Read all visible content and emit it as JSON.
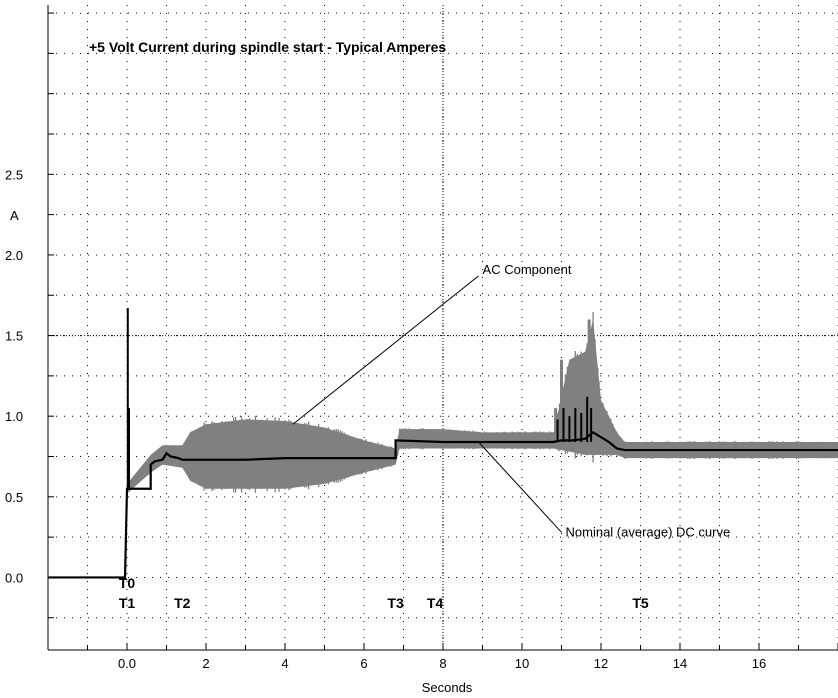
{
  "chart_data": {
    "type": "line",
    "title": "+5 Volt Current during spindle start - Typical Amperes",
    "xlabel": "Seconds",
    "ylabel": "A",
    "xlim": [
      -2.0,
      18.0
    ],
    "ylim": [
      -0.45,
      3.55
    ],
    "grid": true,
    "x_ticks": [
      {
        "value": 0,
        "label": "0.0"
      },
      {
        "value": 2,
        "label": "2"
      },
      {
        "value": 4,
        "label": "4"
      },
      {
        "value": 6,
        "label": "6"
      },
      {
        "value": 8,
        "label": "8"
      },
      {
        "value": 10,
        "label": "10"
      },
      {
        "value": 12,
        "label": "12"
      },
      {
        "value": 14,
        "label": "14"
      },
      {
        "value": 16,
        "label": "16"
      }
    ],
    "y_ticks": [
      {
        "value": 0.0,
        "label": "0.0"
      },
      {
        "value": 0.5,
        "label": "0.5"
      },
      {
        "value": 1.0,
        "label": "1.0"
      },
      {
        "value": 1.5,
        "label": "1.5"
      },
      {
        "value": 2.0,
        "label": "2.0"
      },
      {
        "value": 2.5,
        "label": "2.5"
      }
    ],
    "series": [
      {
        "name": "Nominal (average) DC curve",
        "color": "#000000",
        "x": [
          -2.0,
          -0.05,
          0.0,
          0.0,
          0.6,
          0.6,
          0.7,
          0.9,
          1.0,
          1.1,
          1.3,
          1.4,
          2.0,
          3.0,
          4.0,
          5.0,
          6.0,
          6.8,
          6.8,
          8.0,
          9.0,
          10.0,
          10.8,
          11.0,
          11.3,
          11.6,
          11.8,
          12.0,
          12.2,
          12.4,
          12.6,
          13.0,
          14.0,
          15.0,
          16.0,
          17.0,
          18.0
        ],
        "y": [
          0.0,
          0.0,
          0.55,
          0.55,
          0.55,
          0.7,
          0.72,
          0.73,
          0.77,
          0.75,
          0.74,
          0.73,
          0.73,
          0.73,
          0.74,
          0.74,
          0.74,
          0.74,
          0.85,
          0.84,
          0.84,
          0.84,
          0.84,
          0.85,
          0.85,
          0.86,
          0.9,
          0.87,
          0.84,
          0.8,
          0.79,
          0.79,
          0.79,
          0.79,
          0.79,
          0.79,
          0.79
        ]
      },
      {
        "name": "AC Component",
        "color": "#808080",
        "x": [
          0.0,
          0.6,
          0.9,
          1.4,
          1.6,
          2.0,
          3.0,
          4.0,
          5.0,
          6.0,
          6.8,
          6.9,
          8.0,
          9.0,
          10.0,
          10.8,
          11.2,
          11.6,
          11.8,
          12.0,
          12.4,
          12.6,
          13.0,
          14.0,
          15.0,
          16.0,
          18.0
        ],
        "y_min": [
          0.52,
          0.65,
          0.7,
          0.68,
          0.6,
          0.55,
          0.55,
          0.55,
          0.58,
          0.65,
          0.7,
          0.8,
          0.8,
          0.8,
          0.8,
          0.8,
          0.78,
          0.76,
          0.76,
          0.76,
          0.76,
          0.74,
          0.74,
          0.74,
          0.74,
          0.74,
          0.74
        ],
        "y_max": [
          0.58,
          0.76,
          0.82,
          0.82,
          0.9,
          0.95,
          0.98,
          0.97,
          0.93,
          0.85,
          0.8,
          0.92,
          0.92,
          0.9,
          0.9,
          0.9,
          1.35,
          1.4,
          1.6,
          1.1,
          0.9,
          0.84,
          0.84,
          0.84,
          0.84,
          0.84,
          0.84
        ]
      }
    ],
    "spikes": [
      {
        "x": 0.02,
        "y": 1.67
      },
      {
        "x": 0.05,
        "y": 1.05
      }
    ],
    "event_markers": [
      {
        "label": "T0",
        "x": 0.0,
        "row": 1
      },
      {
        "label": "T1",
        "x": 0.0,
        "row": 2
      },
      {
        "label": "T2",
        "x": 1.4,
        "row": 2
      },
      {
        "label": "T3",
        "x": 6.8,
        "row": 2
      },
      {
        "label": "T4",
        "x": 7.8,
        "row": 2
      },
      {
        "label": "T5",
        "x": 13.0,
        "row": 2
      }
    ],
    "annotations": [
      {
        "text": "AC Component",
        "target_x": 4.2,
        "target_y": 0.95,
        "text_x": 8.9,
        "text_y": 1.87
      },
      {
        "text": "Nominal (average) DC curve",
        "target_x": 8.9,
        "target_y": 0.84,
        "text_x": 11.0,
        "text_y": 0.28
      }
    ]
  }
}
